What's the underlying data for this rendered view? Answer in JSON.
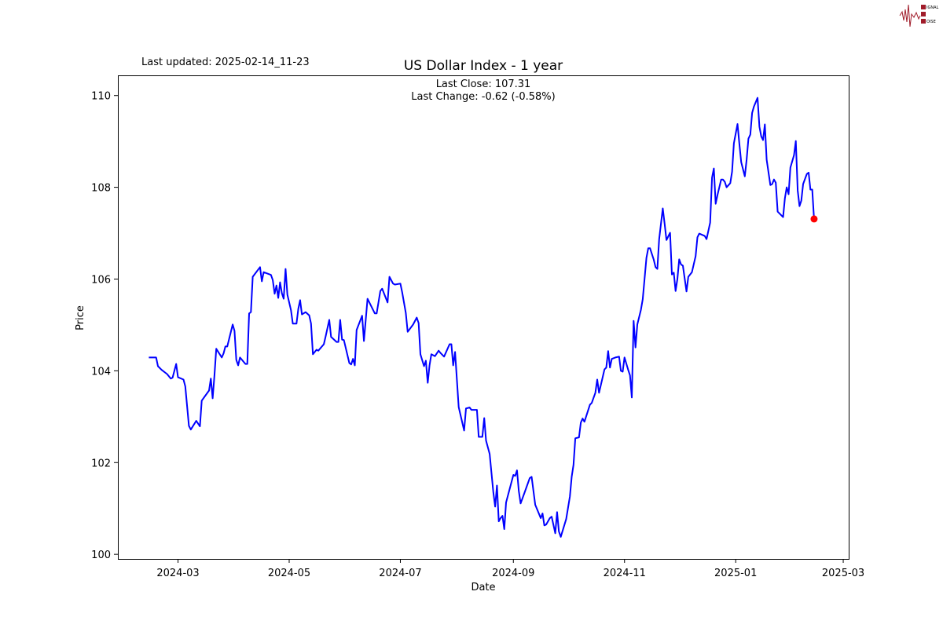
{
  "header": {
    "last_updated": "Last updated: 2025-02-14_11-23",
    "logo_text": "SIGNAL 2 NOISE"
  },
  "chart_data": {
    "type": "line",
    "title": "US Dollar Index - 1 year",
    "annotation": [
      "Last Close: 107.31",
      "Last Change: -0.62 (-0.58%)"
    ],
    "xlabel": "Date",
    "ylabel": "Price",
    "xlim": [
      "2024-01-28",
      "2025-03-04"
    ],
    "ylim": [
      99.9,
      110.44
    ],
    "xticks": [
      "2024-03-01",
      "2024-05-01",
      "2024-07-01",
      "2024-09-01",
      "2024-11-01",
      "2025-01-01",
      "2025-03-01"
    ],
    "xtick_labels": [
      "2024-03",
      "2024-05",
      "2024-07",
      "2024-09",
      "2024-11",
      "2025-01",
      "2025-03"
    ],
    "yticks": [
      100,
      102,
      104,
      106,
      108,
      110
    ],
    "ytick_labels": [
      "100",
      "102",
      "104",
      "106",
      "108",
      "110"
    ],
    "grid": false,
    "line_color": "#0000ff",
    "marker_color": "#ff0000",
    "last_point": {
      "date": "2025-02-13",
      "value": 107.31
    },
    "series": [
      {
        "x": [
          "2024-02-14",
          "2024-02-18",
          "2024-02-19",
          "2024-02-21",
          "2024-02-24",
          "2024-02-26",
          "2024-02-27",
          "2024-02-29",
          "2024-03-01",
          "2024-03-04",
          "2024-03-05",
          "2024-03-07",
          "2024-03-08",
          "2024-03-11",
          "2024-03-13",
          "2024-03-14",
          "2024-03-18",
          "2024-03-19",
          "2024-03-20",
          "2024-03-21",
          "2024-03-22",
          "2024-03-25",
          "2024-03-26",
          "2024-03-27",
          "2024-03-28",
          "2024-03-31",
          "2024-04-01",
          "2024-04-02",
          "2024-04-03",
          "2024-04-04",
          "2024-04-07",
          "2024-04-08",
          "2024-04-09",
          "2024-04-10",
          "2024-04-11",
          "2024-04-15",
          "2024-04-16",
          "2024-04-17",
          "2024-04-21",
          "2024-04-22",
          "2024-04-23",
          "2024-04-24",
          "2024-04-25",
          "2024-04-26",
          "2024-04-27",
          "2024-04-28",
          "2024-04-29",
          "2024-04-30",
          "2024-05-02",
          "2024-05-03",
          "2024-05-05",
          "2024-05-06",
          "2024-05-07",
          "2024-05-08",
          "2024-05-10",
          "2024-05-12",
          "2024-05-13",
          "2024-05-14",
          "2024-05-16",
          "2024-05-17",
          "2024-05-20",
          "2024-05-21",
          "2024-05-23",
          "2024-05-24",
          "2024-05-27",
          "2024-05-28",
          "2024-05-29",
          "2024-05-30",
          "2024-05-31",
          "2024-06-03",
          "2024-06-04",
          "2024-06-05",
          "2024-06-06",
          "2024-06-07",
          "2024-06-10",
          "2024-06-11",
          "2024-06-13",
          "2024-06-17",
          "2024-06-18",
          "2024-06-20",
          "2024-06-21",
          "2024-06-24",
          "2024-06-25",
          "2024-06-27",
          "2024-06-28",
          "2024-07-01",
          "2024-07-02",
          "2024-07-04",
          "2024-07-05",
          "2024-07-08",
          "2024-07-10",
          "2024-07-11",
          "2024-07-12",
          "2024-07-14",
          "2024-07-15",
          "2024-07-16",
          "2024-07-17",
          "2024-07-18",
          "2024-07-20",
          "2024-07-22",
          "2024-07-23",
          "2024-07-25",
          "2024-07-28",
          "2024-07-29",
          "2024-07-30",
          "2024-07-31",
          "2024-08-02",
          "2024-08-05",
          "2024-08-06",
          "2024-08-08",
          "2024-08-09",
          "2024-08-12",
          "2024-08-13",
          "2024-08-15",
          "2024-08-16",
          "2024-08-17",
          "2024-08-19",
          "2024-08-21",
          "2024-08-22",
          "2024-08-23",
          "2024-08-24",
          "2024-08-25",
          "2024-08-26",
          "2024-08-27",
          "2024-08-28",
          "2024-09-01",
          "2024-09-02",
          "2024-09-03",
          "2024-09-04",
          "2024-09-05",
          "2024-09-07",
          "2024-09-10",
          "2024-09-11",
          "2024-09-13",
          "2024-09-15",
          "2024-09-16",
          "2024-09-17",
          "2024-09-18",
          "2024-09-19",
          "2024-09-21",
          "2024-09-22",
          "2024-09-24",
          "2024-09-25",
          "2024-09-26",
          "2024-09-27",
          "2024-09-30",
          "2024-10-02",
          "2024-10-03",
          "2024-10-04",
          "2024-10-05",
          "2024-10-07",
          "2024-10-08",
          "2024-10-09",
          "2024-10-10",
          "2024-10-13",
          "2024-10-14",
          "2024-10-16",
          "2024-10-17",
          "2024-10-18",
          "2024-10-20",
          "2024-10-21",
          "2024-10-22",
          "2024-10-23",
          "2024-10-24",
          "2024-10-25",
          "2024-10-27",
          "2024-10-29",
          "2024-10-30",
          "2024-10-31",
          "2024-11-01",
          "2024-11-03",
          "2024-11-04",
          "2024-11-05",
          "2024-11-06",
          "2024-11-07",
          "2024-11-08",
          "2024-11-10",
          "2024-11-11",
          "2024-11-13",
          "2024-11-14",
          "2024-11-15",
          "2024-11-17",
          "2024-11-18",
          "2024-11-19",
          "2024-11-20",
          "2024-11-22",
          "2024-11-23",
          "2024-11-24",
          "2024-11-26",
          "2024-11-27",
          "2024-11-28",
          "2024-11-29",
          "2024-11-30",
          "2024-12-01",
          "2024-12-02",
          "2024-12-03",
          "2024-12-05",
          "2024-12-06",
          "2024-12-08",
          "2024-12-10",
          "2024-12-11",
          "2024-12-12",
          "2024-12-15",
          "2024-12-16",
          "2024-12-18",
          "2024-12-19",
          "2024-12-20",
          "2024-12-21",
          "2024-12-22",
          "2024-12-24",
          "2024-12-25",
          "2024-12-26",
          "2024-12-27",
          "2024-12-29",
          "2024-12-30",
          "2024-12-31",
          "2025-01-02",
          "2025-01-03",
          "2025-01-04",
          "2025-01-06",
          "2025-01-07",
          "2025-01-08",
          "2025-01-09",
          "2025-01-10",
          "2025-01-11",
          "2025-01-13",
          "2025-01-14",
          "2025-01-15",
          "2025-01-16",
          "2025-01-17",
          "2025-01-18",
          "2025-01-20",
          "2025-01-21",
          "2025-01-22",
          "2025-01-23",
          "2025-01-24",
          "2025-01-27",
          "2025-01-28",
          "2025-01-29",
          "2025-01-30",
          "2025-01-31",
          "2025-02-02",
          "2025-02-03",
          "2025-02-04",
          "2025-02-05",
          "2025-02-06",
          "2025-02-07",
          "2025-02-09",
          "2025-02-10",
          "2025-02-11",
          "2025-02-12",
          "2025-02-13"
        ],
        "y": [
          104.29,
          104.29,
          104.1,
          104.02,
          103.93,
          103.83,
          103.85,
          104.15,
          103.86,
          103.81,
          103.66,
          102.8,
          102.72,
          102.91,
          102.79,
          103.35,
          103.57,
          103.83,
          103.4,
          103.9,
          104.48,
          104.29,
          104.38,
          104.53,
          104.53,
          105.01,
          104.87,
          104.24,
          104.12,
          104.29,
          104.15,
          104.15,
          105.25,
          105.28,
          106.05,
          106.26,
          105.95,
          106.15,
          106.09,
          105.98,
          105.68,
          105.86,
          105.59,
          105.93,
          105.69,
          105.57,
          106.22,
          105.66,
          105.32,
          105.03,
          105.03,
          105.35,
          105.54,
          105.23,
          105.28,
          105.21,
          105.03,
          104.36,
          104.46,
          104.44,
          104.58,
          104.75,
          105.11,
          104.74,
          104.63,
          104.63,
          105.11,
          104.68,
          104.67,
          104.17,
          104.14,
          104.26,
          104.12,
          104.89,
          105.2,
          104.65,
          105.57,
          105.25,
          105.25,
          105.74,
          105.79,
          105.49,
          106.05,
          105.9,
          105.88,
          105.9,
          105.71,
          105.26,
          104.85,
          105.01,
          105.16,
          105.04,
          104.36,
          104.1,
          104.22,
          103.74,
          104.12,
          104.36,
          104.32,
          104.44,
          104.39,
          104.31,
          104.58,
          104.58,
          104.12,
          104.41,
          103.21,
          102.7,
          103.18,
          103.2,
          103.15,
          103.15,
          102.56,
          102.56,
          102.97,
          102.48,
          102.19,
          101.35,
          101.04,
          101.5,
          100.72,
          100.79,
          100.84,
          100.55,
          101.13,
          101.73,
          101.71,
          101.83,
          101.38,
          101.11,
          101.33,
          101.66,
          101.69,
          101.08,
          100.89,
          100.79,
          100.89,
          100.63,
          100.65,
          100.79,
          100.82,
          100.46,
          100.92,
          100.5,
          100.38,
          100.77,
          101.26,
          101.69,
          101.95,
          102.53,
          102.55,
          102.87,
          102.96,
          102.89,
          103.26,
          103.3,
          103.52,
          103.81,
          103.52,
          103.86,
          104.03,
          104.07,
          104.43,
          104.07,
          104.26,
          104.29,
          104.31,
          104.0,
          103.98,
          104.29,
          104.02,
          103.9,
          103.42,
          105.09,
          104.51,
          105.01,
          105.33,
          105.56,
          106.46,
          106.67,
          106.67,
          106.43,
          106.26,
          106.22,
          106.87,
          107.54,
          107.2,
          106.85,
          107.01,
          106.1,
          106.14,
          105.74,
          106.0,
          106.43,
          106.32,
          106.29,
          105.73,
          106.05,
          106.15,
          106.5,
          106.91,
          106.99,
          106.94,
          106.87,
          107.23,
          108.21,
          108.41,
          107.64,
          107.83,
          108.17,
          108.17,
          108.12,
          108.0,
          108.09,
          108.34,
          108.96,
          109.38,
          108.96,
          108.55,
          108.24,
          108.6,
          109.06,
          109.15,
          109.62,
          109.76,
          109.95,
          109.32,
          109.11,
          109.03,
          109.37,
          108.6,
          108.05,
          108.07,
          108.17,
          108.1,
          107.47,
          107.35,
          107.76,
          108.0,
          107.85,
          108.43,
          108.7,
          109.01,
          107.93,
          107.59,
          107.71,
          108.07,
          108.29,
          108.32,
          107.95,
          107.95,
          107.31
        ]
      }
    ]
  }
}
